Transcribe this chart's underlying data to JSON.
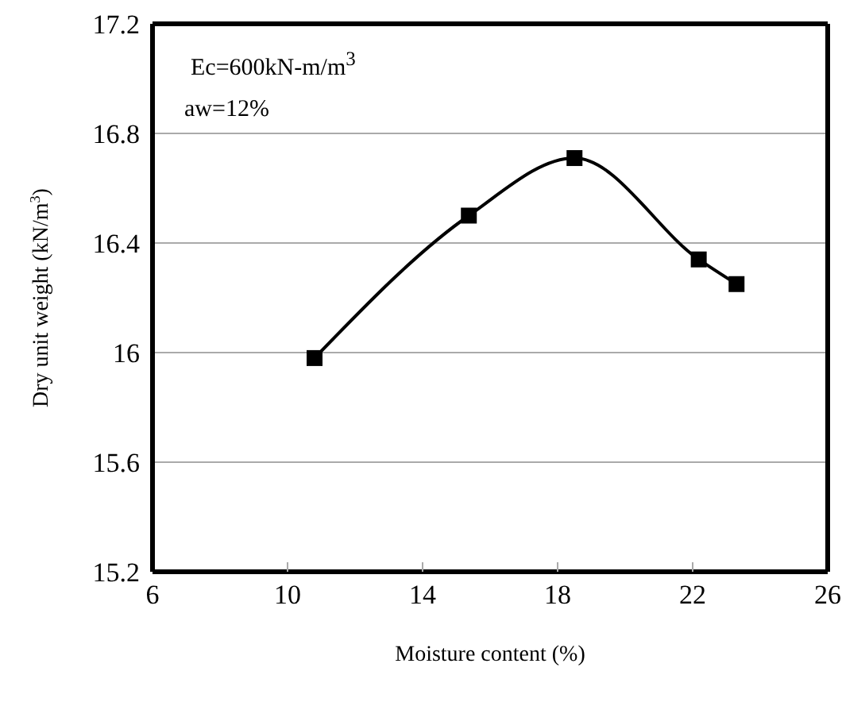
{
  "chart_data": {
    "type": "line",
    "xlabel": "Moisture content (%)",
    "ylabel": "Dry unit weight (kN/m$^{3}$)",
    "annotations": [
      "Ec=600kN-m/m$^{3}$",
      "aw=12%"
    ],
    "series": [
      {
        "color": "#000000",
        "x": [
          10.8,
          15.37,
          18.5,
          22.18,
          23.3
        ],
        "values": [
          15.98,
          16.5,
          16.71,
          16.34,
          16.25
        ]
      }
    ],
    "xlim": [
      6,
      26
    ],
    "xticks": [
      6,
      10,
      14,
      18,
      22,
      26
    ],
    "ylim": [
      15.2,
      17.2
    ],
    "yticks": [
      15.2,
      15.6,
      16,
      16.4,
      16.8,
      17.2
    ],
    "grid": "y",
    "marker": "square",
    "line_style": "solid"
  }
}
